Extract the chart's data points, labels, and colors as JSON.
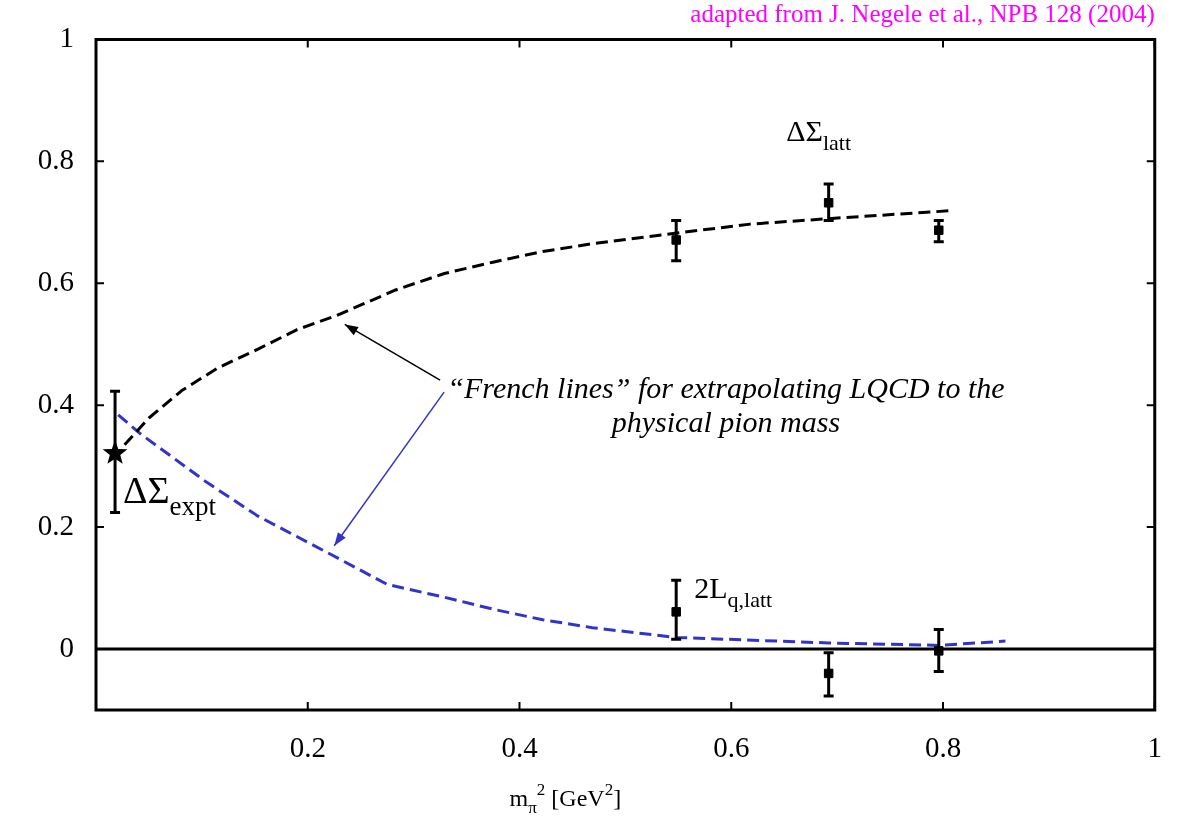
{
  "chart_data": {
    "type": "scatter",
    "xlabel": "m$_{π}$$^{2}$ [GeV$^{2}$]",
    "xlim": [
      0,
      1
    ],
    "ylim": [
      -0.1,
      1
    ],
    "xticks": [
      0.2,
      0.4,
      0.6,
      0.8,
      1
    ],
    "yticks": [
      0,
      0.2,
      0.4,
      0.6,
      0.8,
      1
    ],
    "series": [
      {
        "name": "ΔΣ$_{latt}$",
        "marker": "square",
        "color": "#000000",
        "x": [
          0.548,
          0.692,
          0.796
        ],
        "values": [
          0.671,
          0.732,
          0.687
        ],
        "errors": [
          [
            0.637,
            0.703
          ],
          [
            0.703,
            0.763
          ],
          [
            0.668,
            0.703
          ]
        ]
      },
      {
        "type": "line",
        "line_style": "dashed",
        "marker": "none",
        "color": "#000000",
        "x": [
          0.027,
          0.05,
          0.081,
          0.115,
          0.153,
          0.19,
          0.227,
          0.283,
          0.329,
          0.376,
          0.422,
          0.469,
          0.547,
          0.618,
          0.692,
          0.807
        ],
        "values": [
          0.335,
          0.379,
          0.424,
          0.461,
          0.492,
          0.524,
          0.547,
          0.589,
          0.616,
          0.635,
          0.652,
          0.665,
          0.682,
          0.697,
          0.706,
          0.719
        ]
      },
      {
        "name": "2L$_{q,latt}$",
        "marker": "square",
        "color": "#000000",
        "x": [
          0.548,
          0.692,
          0.796
        ],
        "values": [
          0.061,
          -0.04,
          -0.003
        ],
        "errors": [
          [
            0.016,
            0.113
          ],
          [
            -0.077,
            -0.006
          ],
          [
            -0.037,
            0.032
          ]
        ]
      },
      {
        "type": "line",
        "line_style": "dashed",
        "marker": "none",
        "color": "#3333cc",
        "x": [
          0.021,
          0.042,
          0.105,
          0.153,
          0.222,
          0.275,
          0.329,
          0.376,
          0.422,
          0.469,
          0.548,
          0.692,
          0.796,
          0.859
        ],
        "values": [
          0.384,
          0.353,
          0.273,
          0.218,
          0.155,
          0.106,
          0.085,
          0.065,
          0.048,
          0.035,
          0.019,
          0.01,
          0.006,
          0.013
        ]
      },
      {
        "name": "ΔΣ$_{expt}$",
        "marker": "star",
        "color": "#000000",
        "x": [
          0.018
        ],
        "values": [
          0.321
        ],
        "errors": [
          [
            0.224,
            0.423
          ]
        ]
      }
    ],
    "ref_lines": [
      {
        "axis": "y",
        "value": 0,
        "color": "#000000"
      }
    ],
    "annotations": [
      "“French lines” for extrapolating LQCD to the physical pion mass",
      "adapted from J. Negele et al., NPB 128 (2004)"
    ]
  }
}
